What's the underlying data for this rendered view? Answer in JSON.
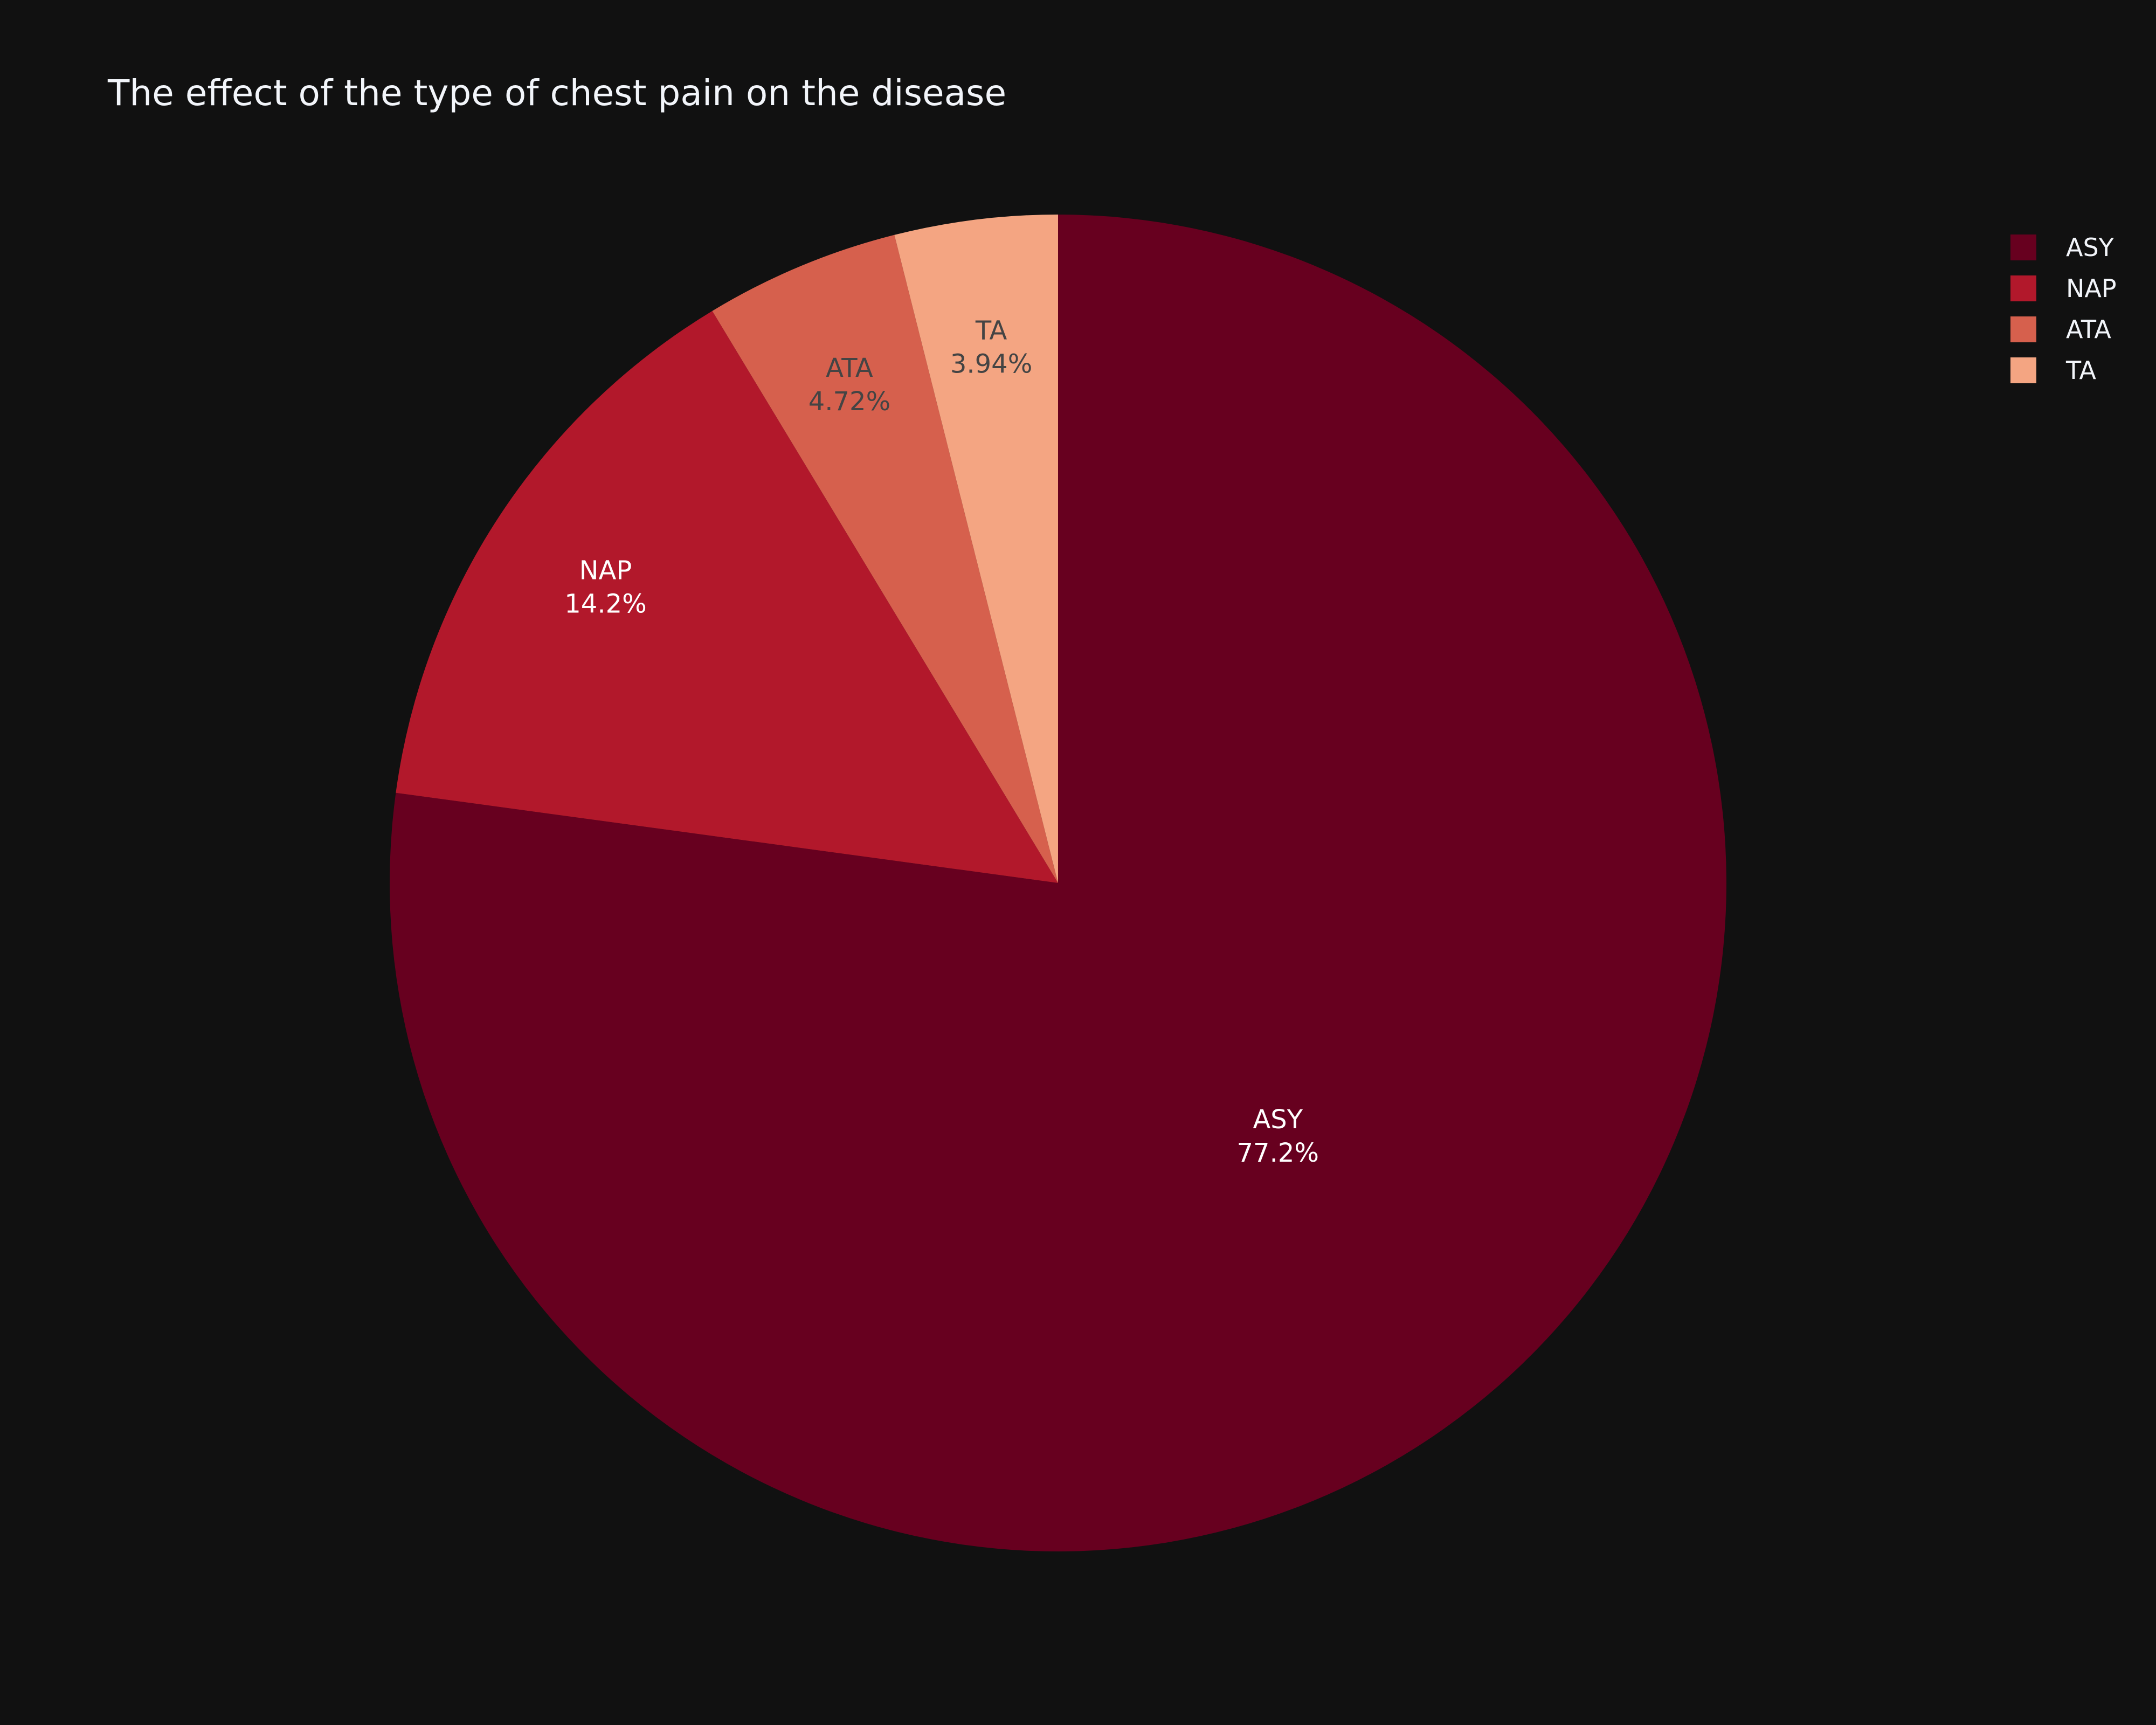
{
  "chart_data": {
    "type": "pie",
    "title": "The effect of the type of chest pain on the disease",
    "slices": [
      {
        "label": "ASY",
        "value": 77.2,
        "percent_text": "77.2%",
        "color": "#67001f",
        "text_color": "#ffffff"
      },
      {
        "label": "NAP",
        "value": 14.2,
        "percent_text": "14.2%",
        "color": "#b2182b",
        "text_color": "#ffffff"
      },
      {
        "label": "ATA",
        "value": 4.72,
        "percent_text": "4.72%",
        "color": "#d6604d",
        "text_color": "#444444"
      },
      {
        "label": "TA",
        "value": 3.94,
        "percent_text": "3.94%",
        "color": "#f4a582",
        "text_color": "#444444"
      }
    ],
    "direction": "clockwise",
    "start_angle": "12 o'clock",
    "legend": {
      "position": "top-right",
      "items": [
        "ASY",
        "NAP",
        "ATA",
        "TA"
      ]
    },
    "background_color": "#111111"
  }
}
